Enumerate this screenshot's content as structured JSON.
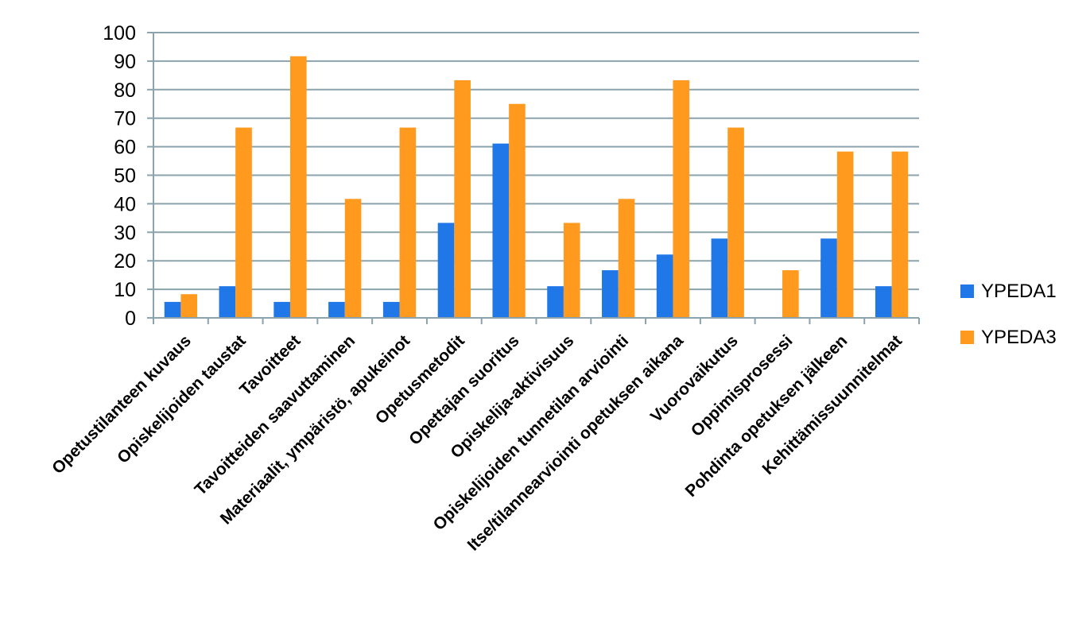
{
  "chart_data": {
    "type": "bar",
    "categories": [
      "Opetustilanteen kuvaus",
      "Opiskelijoiden taustat",
      "Tavoitteet",
      "Tavoitteiden saavuttaminen",
      "Materiaalit, ympäristö, apukeinot",
      "Opetusmetodit",
      "Opettajan suoritus",
      "Opiskelija-aktivisuus",
      "Opiskelijoiden tunnetilan arviointi",
      "Itse/tilannearviointi opetuksen aikana",
      "Vuorovaikutus",
      "Oppimisprosessi",
      "Pohdinta opetuksen jälkeen",
      "Kehittämissuunnitelmat"
    ],
    "series": [
      {
        "name": "YPEDA1",
        "color": "#1f77e8",
        "values": [
          5.6,
          11.1,
          5.6,
          5.6,
          5.6,
          33.3,
          61.1,
          11.1,
          16.7,
          22.2,
          27.8,
          0,
          27.8,
          11.1
        ]
      },
      {
        "name": "YPEDA3",
        "color": "#ff9a1f",
        "values": [
          8.3,
          66.7,
          91.7,
          41.7,
          66.7,
          83.3,
          75.0,
          33.3,
          41.7,
          83.3,
          66.7,
          16.7,
          58.3,
          58.3
        ]
      }
    ],
    "yticks": [
      "0",
      "10",
      "20",
      "30",
      "40",
      "50",
      "60",
      "70",
      "80",
      "90",
      "100"
    ],
    "ylim": [
      0,
      100
    ],
    "grid": true,
    "legend_position": "right",
    "title": "",
    "xlabel": "",
    "ylabel": ""
  }
}
